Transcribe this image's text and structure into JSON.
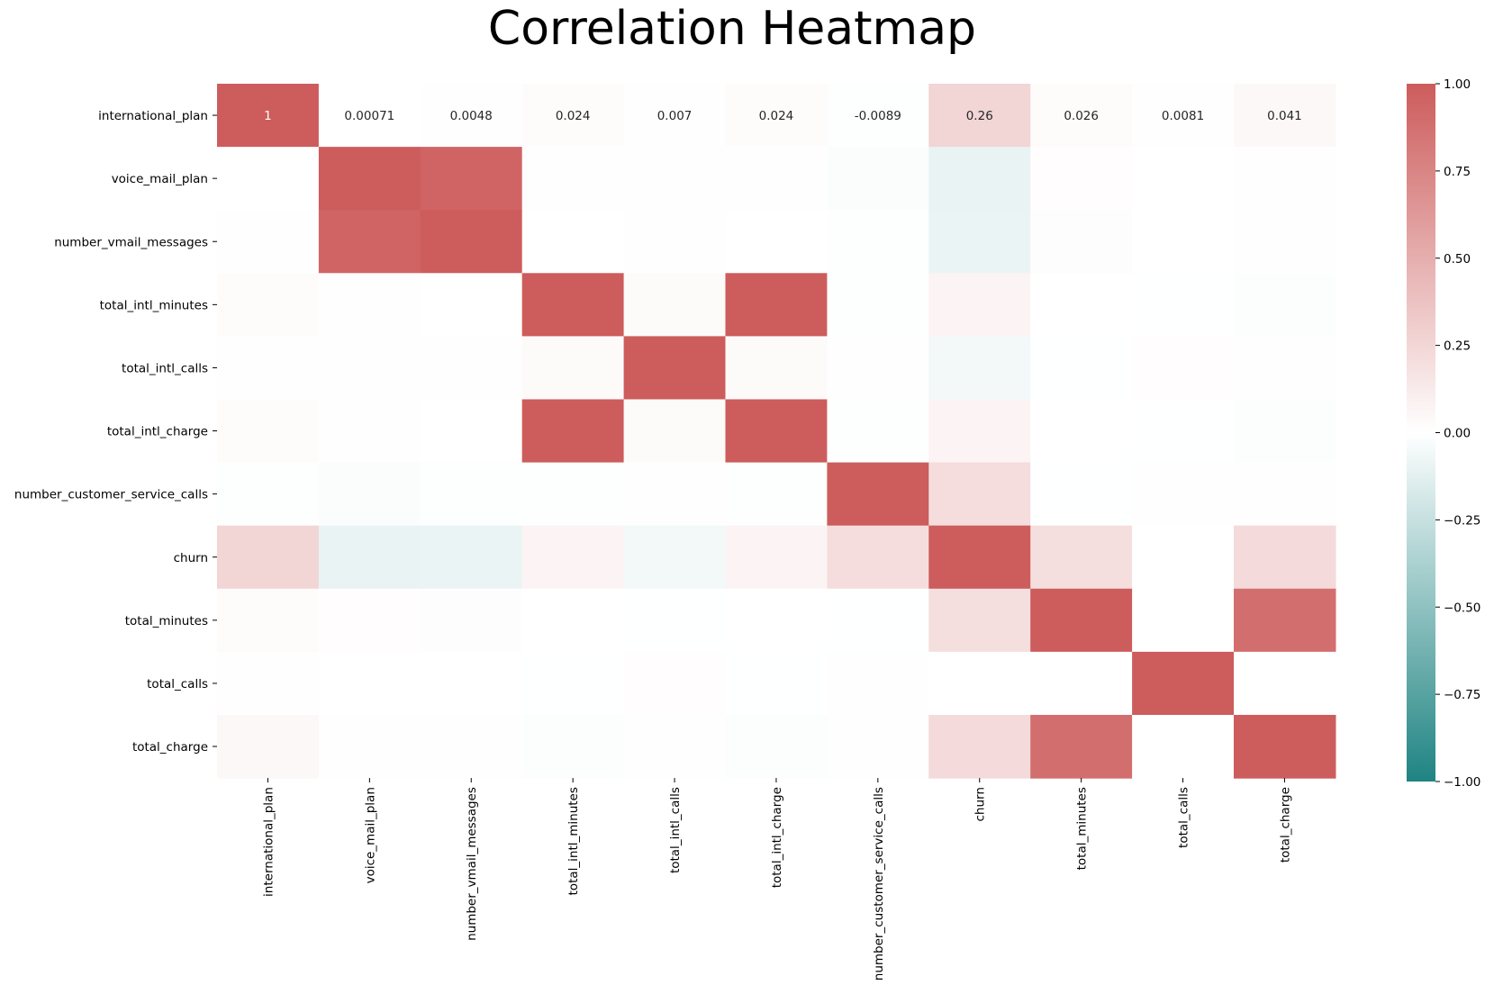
{
  "chart_data": {
    "type": "heatmap",
    "title": "Correlation Heatmap",
    "xlabel": "",
    "ylabel": "",
    "variables": [
      "international_plan",
      "voice_mail_plan",
      "number_vmail_messages",
      "total_intl_minutes",
      "total_intl_calls",
      "total_intl_charge",
      "number_customer_service_calls",
      "churn",
      "total_minutes",
      "total_calls",
      "total_charge"
    ],
    "values": [
      [
        1.0,
        0.00071,
        0.0048,
        0.024,
        0.007,
        0.024,
        -0.0089,
        0.26,
        0.026,
        0.0081,
        0.041
      ],
      [
        0.00071,
        1.0,
        0.95,
        0.0047,
        0.0081,
        0.0047,
        -0.018,
        -0.1,
        0.01,
        0.003,
        0.006
      ],
      [
        0.0048,
        0.95,
        1.0,
        0.0026,
        0.0092,
        0.0026,
        -0.0097,
        -0.09,
        0.015,
        0.001,
        0.009
      ],
      [
        0.024,
        0.0047,
        0.0026,
        1.0,
        0.033,
        1.0,
        -0.0077,
        0.068,
        0.002,
        -0.004,
        -0.012
      ],
      [
        0.007,
        0.0081,
        0.0092,
        0.033,
        1.0,
        0.033,
        -0.0051,
        -0.053,
        -0.003,
        0.01,
        0.004
      ],
      [
        0.024,
        0.0047,
        0.0026,
        1.0,
        0.033,
        1.0,
        -0.0076,
        0.068,
        0.002,
        -0.004,
        -0.012
      ],
      [
        -0.0089,
        -0.018,
        -0.0097,
        -0.0077,
        -0.0051,
        -0.0076,
        1.0,
        0.21,
        -0.004,
        -0.006,
        -0.005
      ],
      [
        0.26,
        -0.1,
        -0.09,
        0.068,
        -0.053,
        0.068,
        0.21,
        1.0,
        0.2,
        0.001,
        0.23
      ],
      [
        0.026,
        0.01,
        0.015,
        0.002,
        -0.003,
        0.002,
        -0.004,
        0.2,
        1.0,
        0.003,
        0.89
      ],
      [
        0.0081,
        0.003,
        0.001,
        -0.004,
        0.01,
        -0.004,
        -0.006,
        0.001,
        0.003,
        1.0,
        0.002
      ],
      [
        0.041,
        0.006,
        0.009,
        -0.012,
        0.004,
        -0.012,
        -0.005,
        0.23,
        0.89,
        0.002,
        1.0
      ]
    ],
    "annotated_rows": [
      0
    ],
    "colorbar": {
      "vmin": -1.0,
      "vmax": 1.0,
      "ticks": [
        "1.00",
        "0.75",
        "0.50",
        "0.25",
        "0.00",
        "−0.25",
        "−0.50",
        "−0.75",
        "−1.00"
      ],
      "tick_values": [
        1.0,
        0.75,
        0.5,
        0.25,
        0.0,
        -0.25,
        -0.5,
        -0.75,
        -1.0
      ]
    },
    "colors": {
      "negative": "#1f8482",
      "center": "#ffffff",
      "positive": "#cd5c5c",
      "annot_light": "#ffffff",
      "annot_dark": "#262626"
    },
    "grid": false
  }
}
